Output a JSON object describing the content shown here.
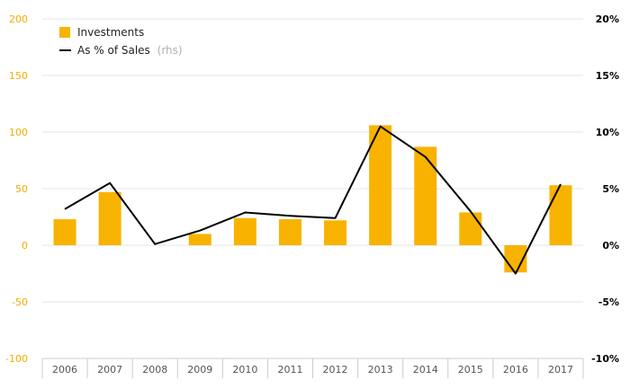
{
  "chart_data": {
    "type": "bar",
    "categories": [
      "2006",
      "2007",
      "2008",
      "2009",
      "2010",
      "2011",
      "2012",
      "2013",
      "2014",
      "2015",
      "2016",
      "2017"
    ],
    "series": [
      {
        "name": "Investments",
        "type": "bar",
        "axis": "left",
        "color": "#f8b300",
        "values": [
          23,
          47,
          0,
          10,
          24,
          23,
          22,
          106,
          87,
          29,
          -24,
          53
        ]
      },
      {
        "name": "As % of Sales",
        "name_suffix": "(rhs)",
        "type": "line",
        "axis": "right",
        "color": "#000000",
        "values": [
          3.2,
          5.5,
          0.1,
          1.3,
          2.9,
          2.6,
          2.4,
          10.5,
          7.8,
          3.0,
          -2.5,
          5.4
        ]
      }
    ],
    "left_axis": {
      "ylim": [
        -100,
        200
      ],
      "ticks": [
        -100,
        -50,
        0,
        50,
        100,
        150,
        200
      ],
      "tick_labels": [
        "-100",
        "-50",
        "0",
        "50",
        "100",
        "150",
        "200"
      ],
      "color": "#f0ad00"
    },
    "right_axis": {
      "ylim": [
        -10,
        20
      ],
      "ticks": [
        -10,
        -5,
        0,
        5,
        10,
        15,
        20
      ],
      "tick_labels": [
        "-10%",
        "-5%",
        "0%",
        "5%",
        "10%",
        "15%",
        "20%"
      ],
      "color": "#000000"
    },
    "grid": true,
    "legend_position": "top-left"
  }
}
